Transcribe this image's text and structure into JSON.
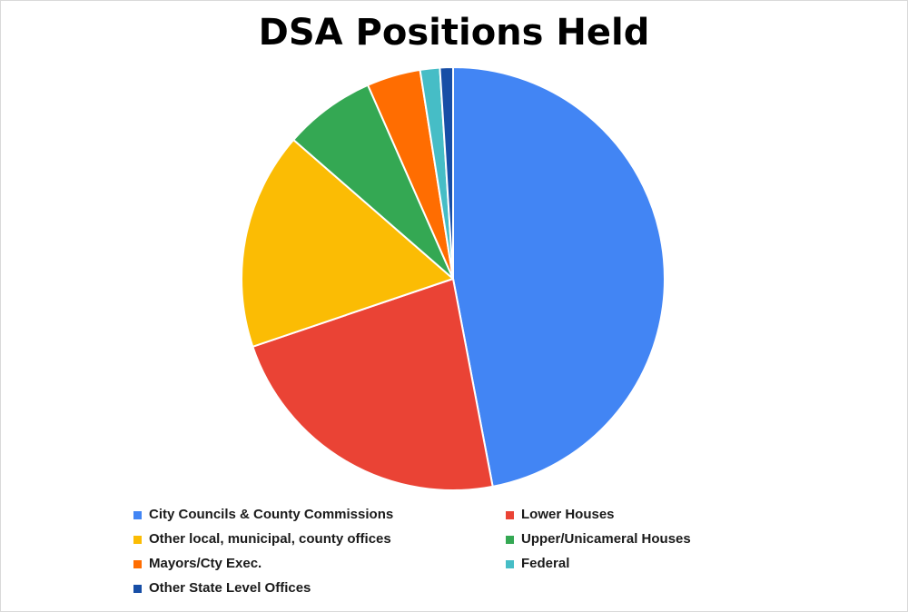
{
  "chart_data": {
    "type": "pie",
    "title": "DSA Positions Held",
    "legend_position": "bottom",
    "slices": [
      {
        "label": "City Councils & County Commissions",
        "value": 47.0,
        "color": "#4285f4"
      },
      {
        "label": "Lower Houses",
        "value": 22.8,
        "color": "#ea4335"
      },
      {
        "label": "Other local, municipal, county offices",
        "value": 16.6,
        "color": "#fbbc04"
      },
      {
        "label": "Upper/Unicameral Houses",
        "value": 7.0,
        "color": "#34a853"
      },
      {
        "label": "Mayors/Cty Exec.",
        "value": 4.1,
        "color": "#ff6d01"
      },
      {
        "label": "Federal",
        "value": 1.5,
        "color": "#46bdc6"
      },
      {
        "label": "Other State Level Offices",
        "value": 1.0,
        "color": "#174ea6"
      }
    ]
  }
}
